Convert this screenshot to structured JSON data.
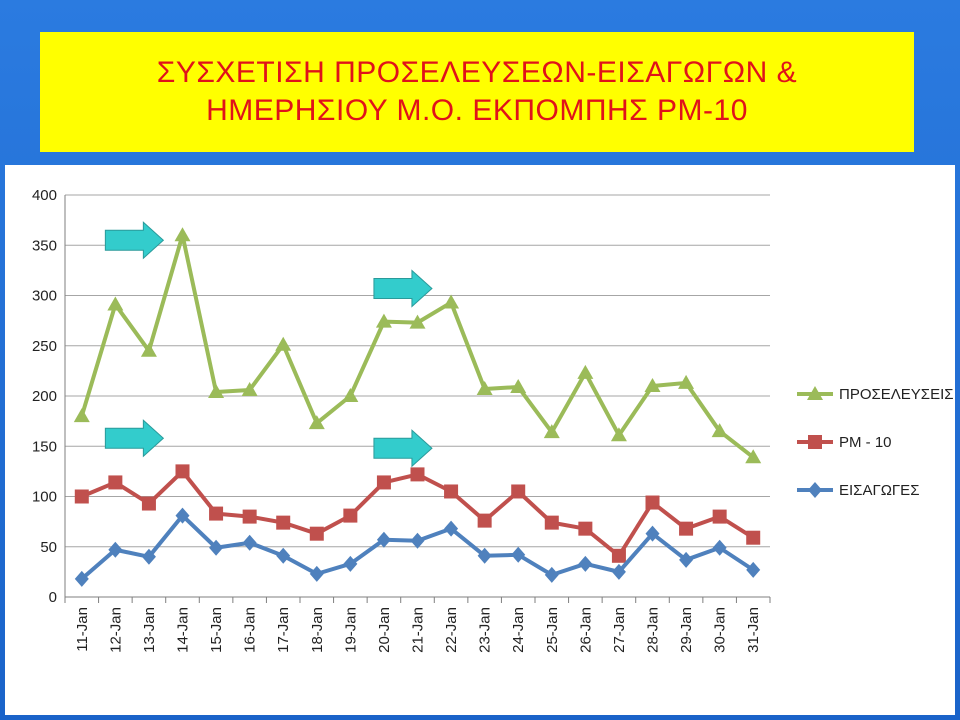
{
  "title": {
    "line1": "ΣΥΣΧΕΤΙΣΗ ΠΡΟΣΕΛΕΥΣΕΩΝ-ΕΙΣΑΓΩΓΩΝ &",
    "line2": "ΗΜΕΡΗΣΙΟΥ Μ.Ο. ΕΚΠΟΜΠΗΣ PM-10"
  },
  "chart_data": {
    "type": "line",
    "categories": [
      "11-Jan",
      "12-Jan",
      "13-Jan",
      "14-Jan",
      "15-Jan",
      "16-Jan",
      "17-Jan",
      "18-Jan",
      "19-Jan",
      "20-Jan",
      "21-Jan",
      "22-Jan",
      "23-Jan",
      "24-Jan",
      "25-Jan",
      "26-Jan",
      "27-Jan",
      "28-Jan",
      "29-Jan",
      "30-Jan",
      "31-Jan"
    ],
    "ylim": [
      0,
      400
    ],
    "yticks": [
      0,
      50,
      100,
      150,
      200,
      250,
      300,
      350,
      400
    ],
    "grid": true,
    "legend_position": "right",
    "series": [
      {
        "name": "ΠΡΟΣΕΛΕΥΣΕΙΣ",
        "color": "#9bbb59",
        "marker": "triangle",
        "values": [
          180,
          291,
          245,
          360,
          204,
          206,
          251,
          173,
          200,
          274,
          273,
          293,
          207,
          209,
          164,
          223,
          161,
          210,
          213,
          165,
          139
        ]
      },
      {
        "name": "PM - 10",
        "color": "#c0504d",
        "marker": "square",
        "values": [
          100,
          114,
          93,
          125,
          83,
          80,
          74,
          63,
          81,
          114,
          122,
          105,
          76,
          105,
          74,
          68,
          41,
          94,
          68,
          80,
          59
        ]
      },
      {
        "name": "ΕΙΣΑΓΩΓΕΣ",
        "color": "#4f81bd",
        "marker": "diamond",
        "values": [
          18,
          47,
          40,
          81,
          49,
          54,
          41,
          23,
          33,
          57,
          56,
          68,
          41,
          42,
          22,
          33,
          25,
          63,
          37,
          49,
          27
        ]
      }
    ],
    "annotations": [
      {
        "type": "arrow",
        "color": "#33cccc",
        "x_category": "12-Jan",
        "y_value": 355
      },
      {
        "type": "arrow",
        "color": "#33cccc",
        "x_category": "20-Jan",
        "y_value": 307
      },
      {
        "type": "arrow",
        "color": "#33cccc",
        "x_category": "12-Jan",
        "y_value": 158
      },
      {
        "type": "arrow",
        "color": "#33cccc",
        "x_category": "20-Jan",
        "y_value": 148
      }
    ]
  }
}
